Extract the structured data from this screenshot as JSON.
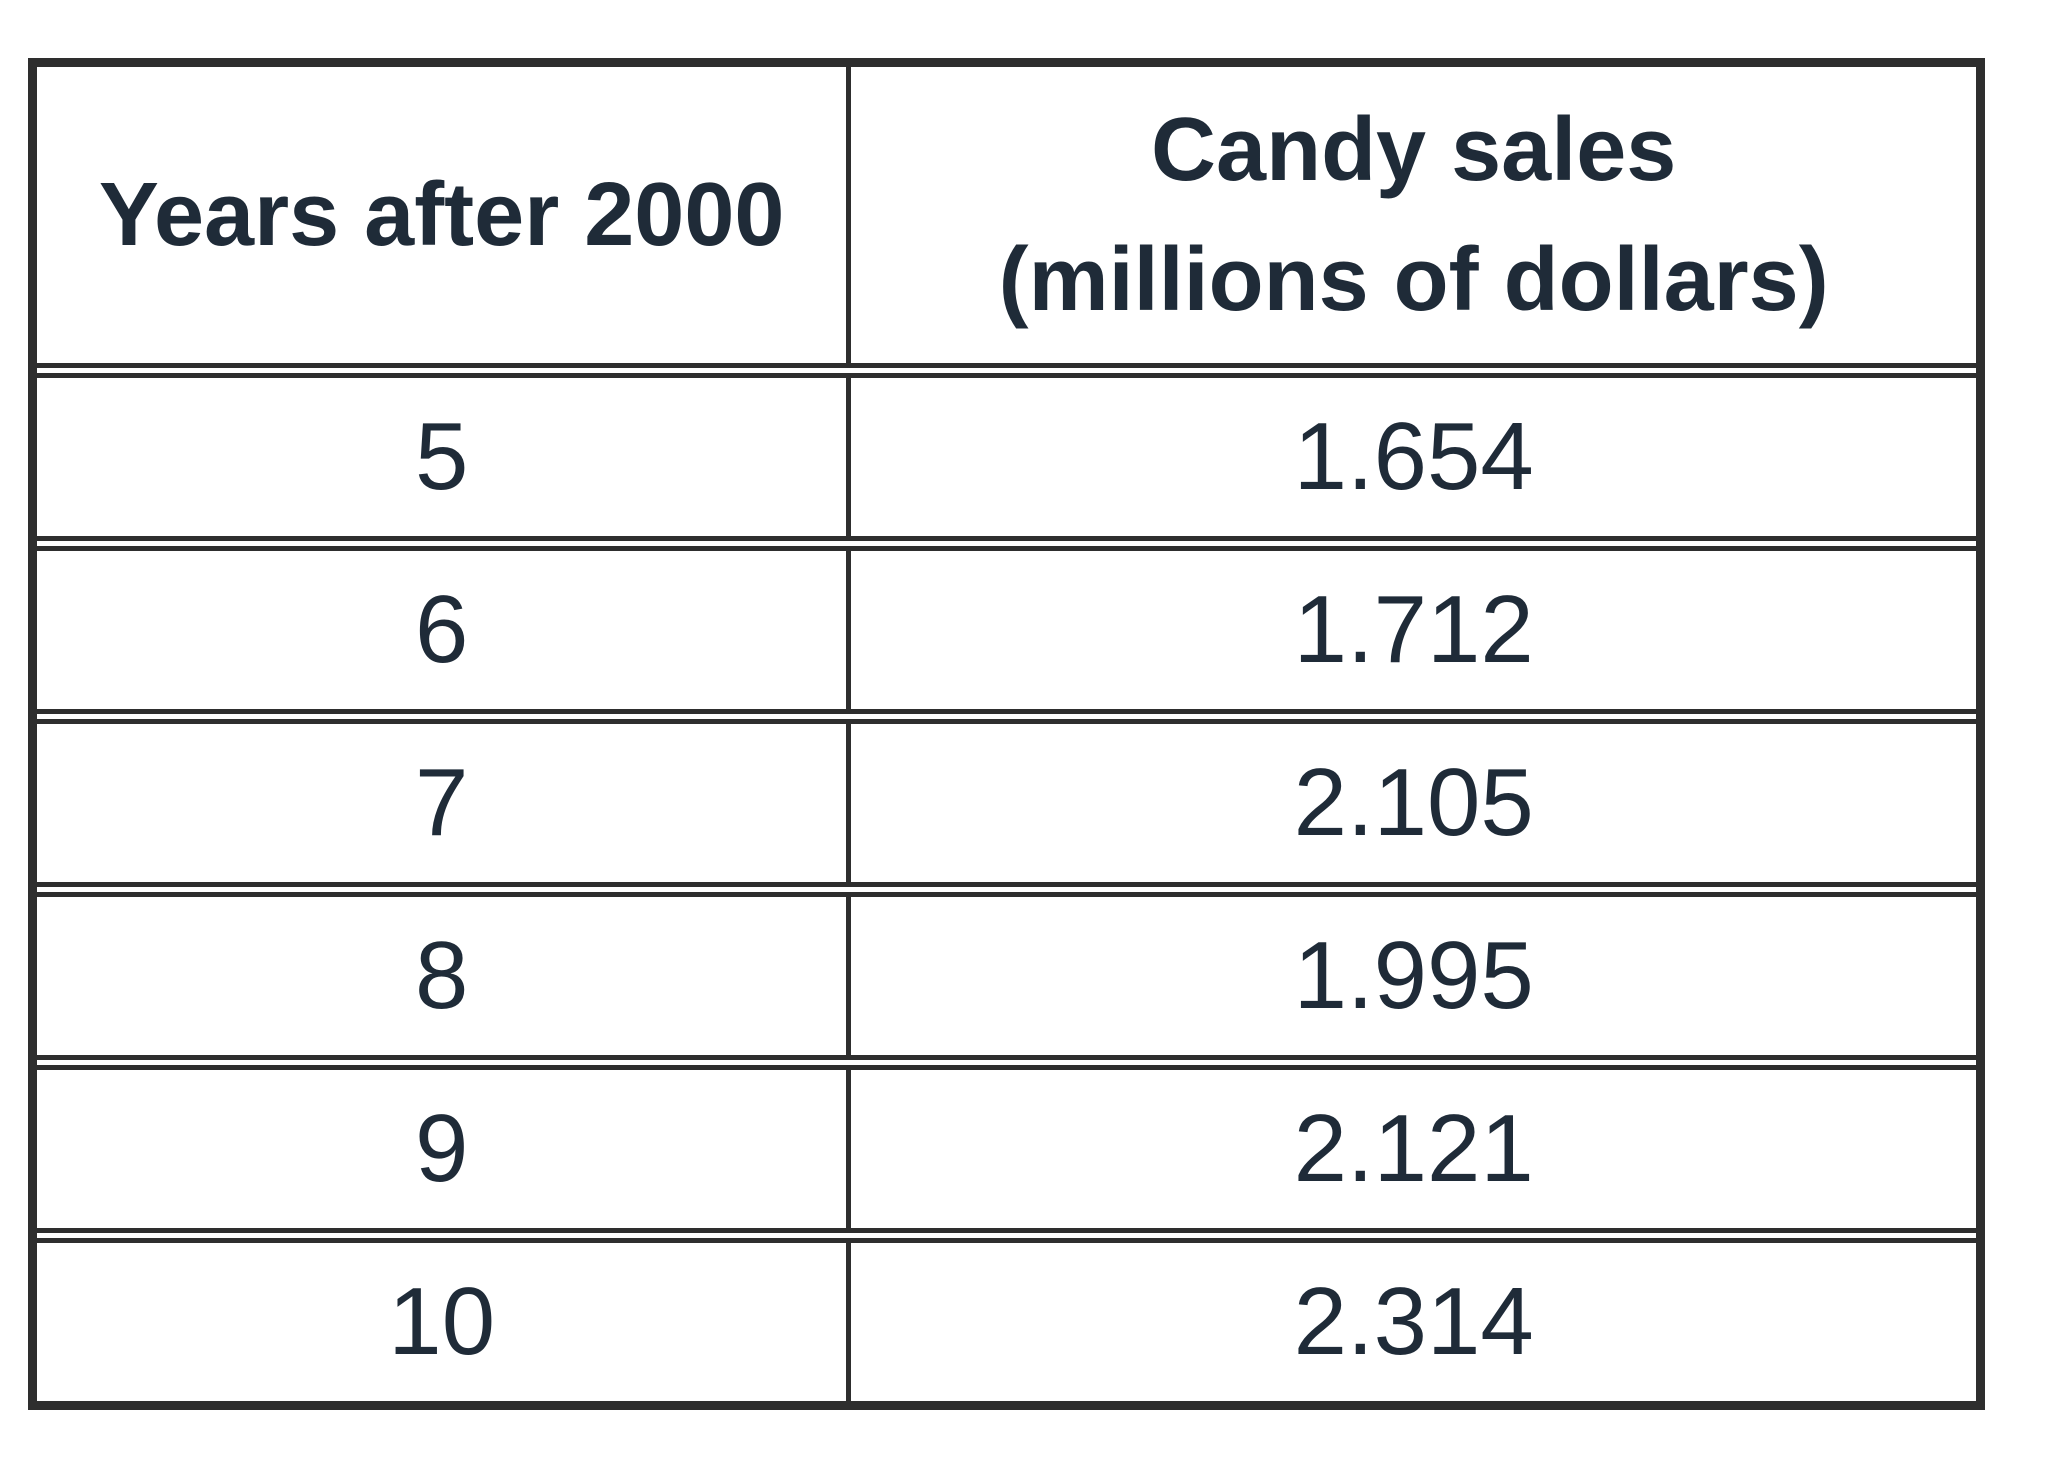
{
  "table": {
    "header": {
      "col1": "Years after 2000",
      "col2_line1": "Candy sales",
      "col2_line2": "(millions of dollars)"
    },
    "rows": [
      {
        "years": "5",
        "sales": "1.654"
      },
      {
        "years": "6",
        "sales": "1.712"
      },
      {
        "years": "7",
        "sales": "2.105"
      },
      {
        "years": "8",
        "sales": "1.995"
      },
      {
        "years": "9",
        "sales": "2.121"
      },
      {
        "years": "10",
        "sales": "2.314"
      }
    ]
  },
  "colors": {
    "border": "#2e2e2e",
    "text": "#1f2b38",
    "background": "#ffffff"
  },
  "chart_data": {
    "type": "table",
    "title": "",
    "columns": [
      "Years after 2000",
      "Candy sales (millions of dollars)"
    ],
    "x": [
      5,
      6,
      7,
      8,
      9,
      10
    ],
    "values": [
      1.654,
      1.712,
      2.105,
      1.995,
      2.121,
      2.314
    ],
    "xlabel": "Years after 2000",
    "ylabel": "Candy sales (millions of dollars)"
  }
}
